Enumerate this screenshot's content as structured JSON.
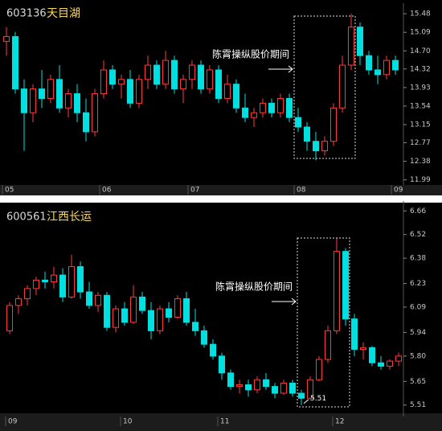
{
  "chart_data": [
    {
      "type": "candlestick",
      "code": "603136",
      "name": "天目湖",
      "annotation": "陈霄操纵股价期间",
      "up_color": "#ff3b3b",
      "down_color": "#00e0e0",
      "categories": [
        "05",
        null,
        null,
        null,
        null,
        null,
        null,
        null,
        null,
        null,
        null,
        "06",
        null,
        null,
        null,
        null,
        null,
        null,
        null,
        null,
        null,
        "07",
        null,
        null,
        null,
        null,
        null,
        null,
        null,
        null,
        null,
        null,
        null,
        "08",
        null,
        null,
        null,
        null,
        null,
        null,
        null,
        null,
        null,
        null,
        "09"
      ],
      "open": [
        14.9,
        15.0,
        13.9,
        13.4,
        13.9,
        13.7,
        14.1,
        13.5,
        13.8,
        13.4,
        13.0,
        13.8,
        14.3,
        14.0,
        14.1,
        13.6,
        14.1,
        14.4,
        14.0,
        14.5,
        13.9,
        14.1,
        14.4,
        13.9,
        14.3,
        13.7,
        14.0,
        13.5,
        13.3,
        13.4,
        13.6,
        13.4,
        13.7,
        13.3,
        13.1,
        12.8,
        12.6,
        12.8,
        13.5,
        14.4,
        15.2,
        14.6,
        14.3,
        14.2,
        14.5
      ],
      "high": [
        15.2,
        15.1,
        14.1,
        14.0,
        14.3,
        14.2,
        14.4,
        13.9,
        14.0,
        13.7,
        13.9,
        14.5,
        14.4,
        14.2,
        14.3,
        14.2,
        14.6,
        14.5,
        14.7,
        14.6,
        14.2,
        14.5,
        14.5,
        14.4,
        14.4,
        14.2,
        14.1,
        13.8,
        13.5,
        13.7,
        13.7,
        13.8,
        13.8,
        13.5,
        13.2,
        13.0,
        12.9,
        13.6,
        14.6,
        15.48,
        15.3,
        14.7,
        14.6,
        14.6,
        14.6
      ],
      "low": [
        14.6,
        13.8,
        12.6,
        13.2,
        13.5,
        13.6,
        13.4,
        13.3,
        13.2,
        12.8,
        12.9,
        13.7,
        13.9,
        13.7,
        13.5,
        13.5,
        13.9,
        13.9,
        13.9,
        13.8,
        13.6,
        13.9,
        13.8,
        13.8,
        13.6,
        13.6,
        13.4,
        13.2,
        13.1,
        13.3,
        13.3,
        13.3,
        13.2,
        13.0,
        12.6,
        12.4,
        12.5,
        12.7,
        13.4,
        14.3,
        14.4,
        14.2,
        14.0,
        14.1,
        14.2
      ],
      "close": [
        15.0,
        13.9,
        13.4,
        13.9,
        13.7,
        14.1,
        13.5,
        13.8,
        13.4,
        13.0,
        13.8,
        14.3,
        14.0,
        14.1,
        13.6,
        14.1,
        14.4,
        14.0,
        14.5,
        13.9,
        14.1,
        14.4,
        13.9,
        14.3,
        13.7,
        14.0,
        13.5,
        13.3,
        13.4,
        13.6,
        13.4,
        13.7,
        13.3,
        13.1,
        12.8,
        12.6,
        12.8,
        13.5,
        14.4,
        15.2,
        14.6,
        14.3,
        14.2,
        14.5,
        14.3
      ],
      "ylim": [
        11.9,
        15.6
      ],
      "yticks": [
        11.99,
        12.38,
        12.77,
        13.15,
        13.54,
        13.93,
        14.32,
        {
          "value": 14.7,
          "label": "14.70"
        },
        15.09,
        15.48
      ]
    },
    {
      "type": "candlestick",
      "code": "600561",
      "name": "江西长运",
      "annotation": "陈霄操纵股价期间",
      "low_label": "5.51",
      "up_color": "#ff3b3b",
      "down_color": "#00e0e0",
      "categories": [
        "09",
        null,
        null,
        null,
        null,
        null,
        null,
        null,
        null,
        null,
        null,
        null,
        null,
        "10",
        null,
        null,
        null,
        null,
        null,
        null,
        null,
        null,
        null,
        null,
        "11",
        null,
        null,
        null,
        null,
        null,
        null,
        null,
        null,
        null,
        null,
        null,
        null,
        "12",
        null,
        null,
        null,
        null,
        null,
        null,
        null
      ],
      "open": [
        5.95,
        6.1,
        6.14,
        6.2,
        6.25,
        6.24,
        6.28,
        6.15,
        6.33,
        6.18,
        6.1,
        6.16,
        5.97,
        6.08,
        6.0,
        6.15,
        6.07,
        5.95,
        6.08,
        6.03,
        6.14,
        6.0,
        5.95,
        5.87,
        5.8,
        5.7,
        5.62,
        5.63,
        5.6,
        5.66,
        5.62,
        5.58,
        5.64,
        5.58,
        5.55,
        5.66,
        5.78,
        5.95,
        6.42,
        6.02,
        5.84,
        5.85,
        5.76,
        5.74,
        5.77
      ],
      "high": [
        6.12,
        6.16,
        6.22,
        6.27,
        6.3,
        6.33,
        6.32,
        6.4,
        6.36,
        6.24,
        6.18,
        6.18,
        6.1,
        6.12,
        6.22,
        6.18,
        6.12,
        6.1,
        6.12,
        6.16,
        6.18,
        6.08,
        5.98,
        5.9,
        5.82,
        5.72,
        5.66,
        5.66,
        5.68,
        5.7,
        5.64,
        5.66,
        5.66,
        5.6,
        5.68,
        5.8,
        5.98,
        6.5,
        6.44,
        6.05,
        5.88,
        5.86,
        5.8,
        5.78,
        5.82
      ],
      "low": [
        5.93,
        6.05,
        6.1,
        6.16,
        6.2,
        6.2,
        6.12,
        6.14,
        6.14,
        6.08,
        6.06,
        5.95,
        5.94,
        5.98,
        5.99,
        6.05,
        5.9,
        5.93,
        6.0,
        6.02,
        5.98,
        5.92,
        5.85,
        5.78,
        5.66,
        5.6,
        5.58,
        5.56,
        5.58,
        5.6,
        5.55,
        5.57,
        5.56,
        5.51,
        5.54,
        5.65,
        5.76,
        5.93,
        5.98,
        5.8,
        5.78,
        5.74,
        5.72,
        5.72,
        5.74
      ],
      "close": [
        6.1,
        6.14,
        6.2,
        6.25,
        6.24,
        6.28,
        6.15,
        6.33,
        6.18,
        6.1,
        6.16,
        5.97,
        6.08,
        6.0,
        6.15,
        6.07,
        5.95,
        6.08,
        6.03,
        6.14,
        6.0,
        5.95,
        5.87,
        5.8,
        5.7,
        5.62,
        5.63,
        5.6,
        5.66,
        5.62,
        5.58,
        5.64,
        5.58,
        5.55,
        5.66,
        5.78,
        5.95,
        6.42,
        6.02,
        5.84,
        5.85,
        5.76,
        5.74,
        5.77,
        5.8
      ],
      "ylim": [
        5.48,
        6.69
      ],
      "yticks": [
        5.51,
        5.65,
        {
          "value": 5.8,
          "label": "5.80"
        },
        5.94,
        6.09,
        6.23,
        6.38,
        6.52,
        6.66
      ]
    }
  ]
}
